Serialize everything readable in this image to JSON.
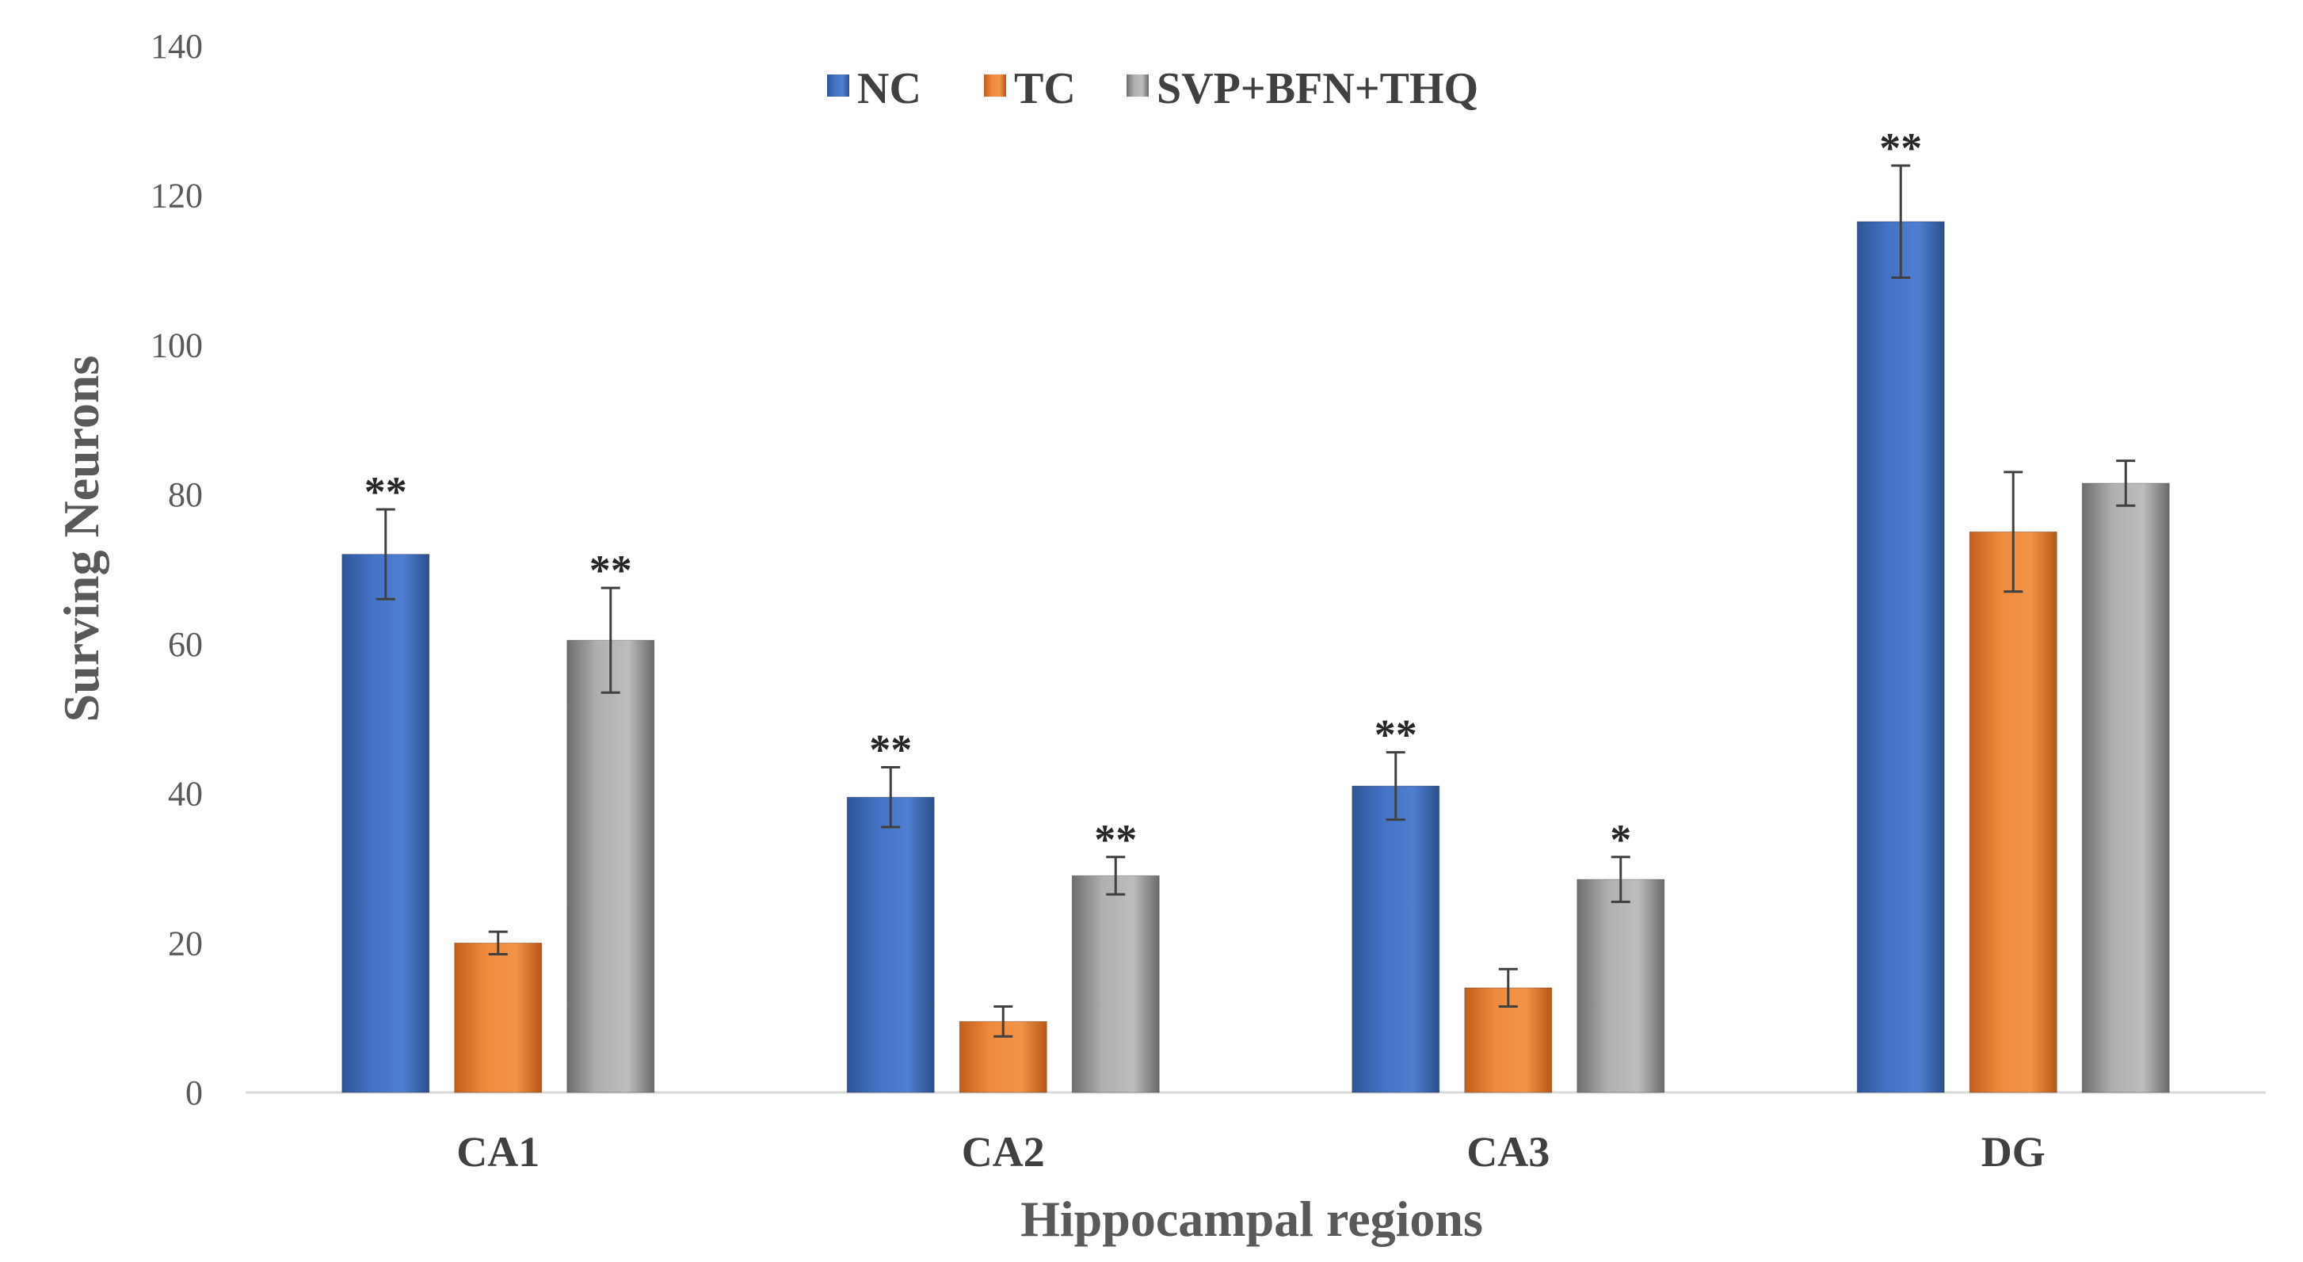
{
  "chart_data": {
    "type": "bar",
    "title": "",
    "xlabel": "Hippocampal regions",
    "ylabel": "Surving  Neurons",
    "ylim": [
      0,
      140
    ],
    "yticks": [
      0,
      20,
      40,
      60,
      80,
      100,
      120,
      140
    ],
    "grid": false,
    "legend_position": "top-center",
    "categories": [
      "CA1",
      "CA2",
      "CA3",
      "DG"
    ],
    "series": [
      {
        "name": "NC",
        "color": "#4472C4",
        "values": [
          72,
          39.5,
          41,
          116.5
        ],
        "errors": [
          6,
          4,
          4.5,
          7.5
        ],
        "significance": [
          "**",
          "**",
          "**",
          "**"
        ]
      },
      {
        "name": "TC",
        "color": "#ED7D31",
        "values": [
          20,
          9.5,
          14,
          75
        ],
        "errors": [
          1.5,
          2,
          2.5,
          8
        ],
        "significance": [
          "",
          "",
          "",
          ""
        ]
      },
      {
        "name": "SVP+BFN+THQ",
        "color": "#A5A5A5",
        "values": [
          60.5,
          29,
          28.5,
          81.5
        ],
        "errors": [
          7,
          2.5,
          3,
          3
        ],
        "significance": [
          "**",
          "**",
          "*",
          ""
        ]
      }
    ]
  }
}
